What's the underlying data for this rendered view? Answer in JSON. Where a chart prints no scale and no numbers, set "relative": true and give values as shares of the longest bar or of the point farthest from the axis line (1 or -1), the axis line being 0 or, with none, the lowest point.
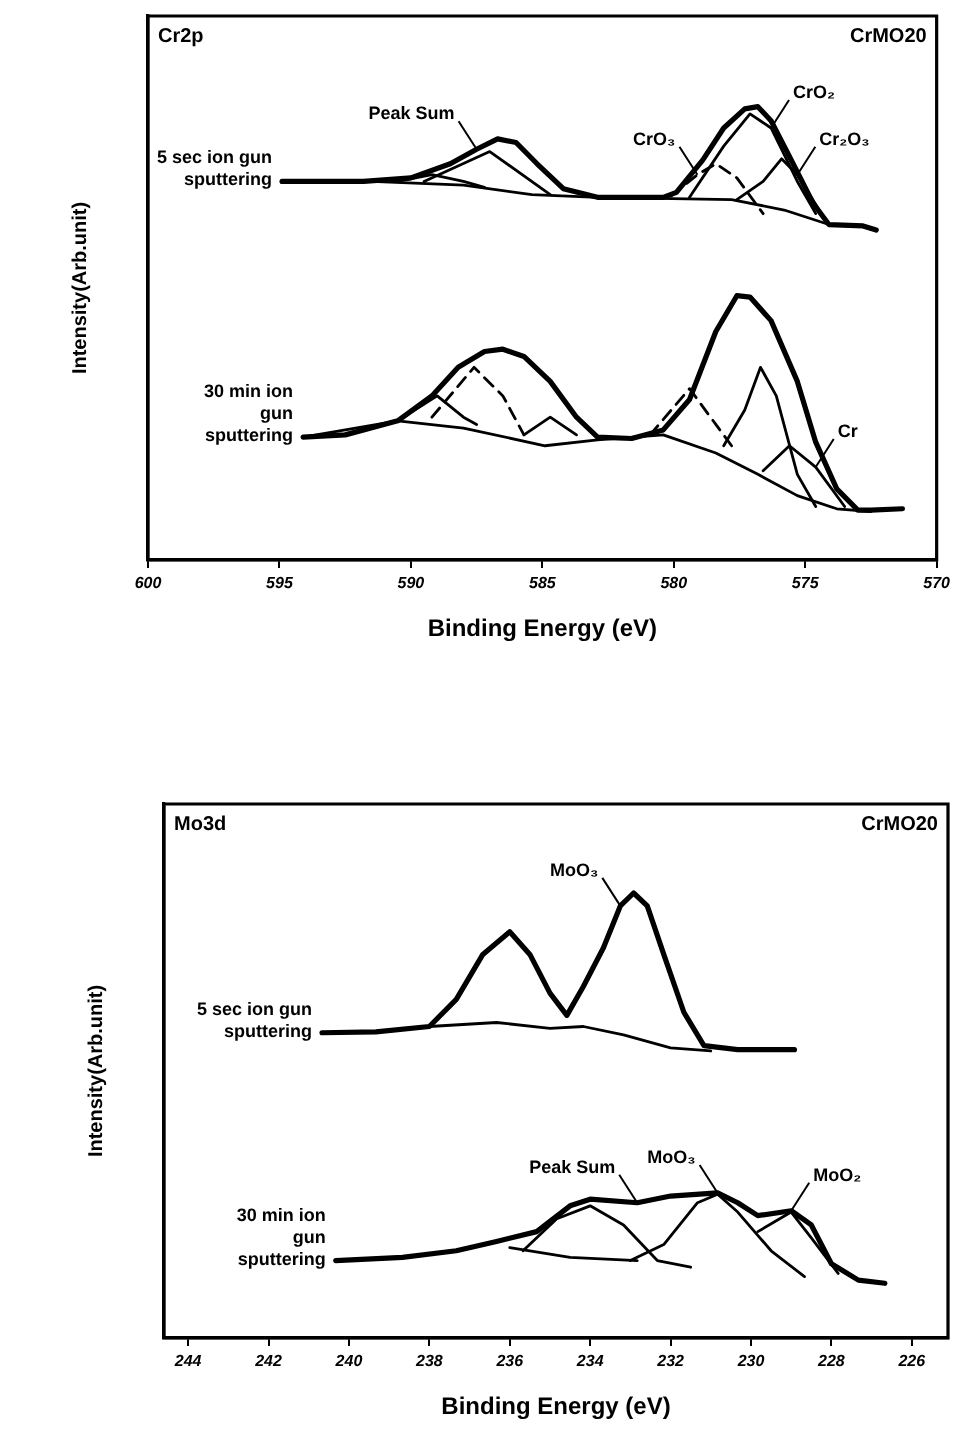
{
  "chart_data": [
    {
      "type": "line",
      "xlabel": "Binding Energy (eV)",
      "ylabel": "Intensity(Arb.unit)",
      "relative": true,
      "legend": false,
      "grid": false,
      "marker": "none",
      "line_style": "solid",
      "xlim": [
        600,
        570
      ],
      "xticks": [
        600,
        595,
        590,
        585,
        580,
        575,
        570
      ],
      "annotations": [
        "Cr2p",
        "CrMO20",
        {
          "text": "Peak Sum",
          "x": 587.5,
          "y": 0.906
        },
        {
          "text": "CrO₃",
          "x": 579.1,
          "y": 0.85
        },
        {
          "text": "CrO₂",
          "x": 576.3,
          "y": 0.953
        },
        {
          "text": "Cr₂O₃",
          "x": 575.3,
          "y": 0.85
        },
        {
          "text": "Cr",
          "x": 574.6,
          "y": 0.205
        }
      ],
      "series": [
        {
          "name": "5 sec ion gun sputtering",
          "color": "#000000",
          "x": [
            594.9,
            591.8,
            590.0,
            588.5,
            587.5,
            586.7,
            586.0,
            585.2,
            584.2,
            582.9,
            580.4,
            579.9,
            578.9,
            578.1,
            577.3,
            576.8,
            576.3,
            575.6,
            574.7,
            574.1,
            572.8,
            572.3
          ],
          "values": [
            0.835,
            0.835,
            0.843,
            0.874,
            0.906,
            0.929,
            0.921,
            0.874,
            0.819,
            0.8,
            0.8,
            0.811,
            0.882,
            0.953,
            0.995,
            1.0,
            0.969,
            0.89,
            0.787,
            0.74,
            0.737,
            0.728
          ]
        },
        {
          "color": "#000000",
          "x": [
            591.5,
            588.0,
            585.4,
            582.9,
            577.8,
            575.8,
            574.1
          ],
          "values": [
            0.835,
            0.827,
            0.806,
            0.8,
            0.795,
            0.772,
            0.74
          ]
        },
        {
          "color": "#000000",
          "x": [
            590.5,
            589.2,
            588.0,
            587.2
          ],
          "values": [
            0.835,
            0.85,
            0.835,
            0.822
          ]
        },
        {
          "color": "#000000",
          "x": [
            589.5,
            587.0,
            584.7
          ],
          "values": [
            0.835,
            0.901,
            0.806
          ]
        },
        {
          "color": "#000000",
          "line_style": "dashed",
          "x": [
            580.1,
            579.1,
            578.4,
            577.6,
            576.6
          ],
          "values": [
            0.803,
            0.85,
            0.874,
            0.843,
            0.764
          ]
        },
        {
          "color": "#000000",
          "x": [
            579.4,
            578.1,
            577.1,
            576.3,
            575.3,
            574.6
          ],
          "values": [
            0.8,
            0.913,
            0.984,
            0.953,
            0.835,
            0.764
          ]
        },
        {
          "color": "#000000",
          "x": [
            577.6,
            576.6,
            575.9,
            575.3,
            574.3
          ],
          "values": [
            0.795,
            0.835,
            0.885,
            0.85,
            0.756
          ]
        },
        {
          "name": "30 min ion gun sputtering",
          "color": "#000000",
          "x": [
            594.1,
            592.5,
            590.5,
            589.2,
            588.2,
            587.2,
            586.5,
            585.7,
            584.7,
            583.7,
            582.9,
            581.6,
            580.4,
            579.4,
            578.4,
            577.6,
            577.1,
            576.3,
            575.3,
            574.6,
            573.8,
            573.0,
            572.5,
            571.3
          ],
          "values": [
            0.271,
            0.276,
            0.307,
            0.362,
            0.425,
            0.46,
            0.465,
            0.449,
            0.394,
            0.315,
            0.271,
            0.268,
            0.287,
            0.354,
            0.504,
            0.583,
            0.58,
            0.528,
            0.394,
            0.26,
            0.157,
            0.11,
            0.11,
            0.113
          ]
        },
        {
          "color": "#000000",
          "x": [
            594.1,
            590.5,
            588.0,
            584.9,
            582.9,
            580.4,
            578.4,
            576.8,
            575.3,
            573.8,
            572.5
          ],
          "values": [
            0.271,
            0.307,
            0.291,
            0.252,
            0.265,
            0.276,
            0.236,
            0.189,
            0.142,
            0.113,
            0.107
          ]
        },
        {
          "color": "#000000",
          "x": [
            590.5,
            589.0,
            588.0,
            587.5
          ],
          "values": [
            0.307,
            0.362,
            0.315,
            0.299
          ]
        },
        {
          "color": "#000000",
          "line_style": "dashed",
          "x": [
            589.2,
            587.6,
            586.5,
            585.7
          ],
          "values": [
            0.315,
            0.425,
            0.362,
            0.276
          ]
        },
        {
          "color": "#000000",
          "x": [
            585.7,
            584.7,
            583.7
          ],
          "values": [
            0.276,
            0.315,
            0.276
          ]
        },
        {
          "color": "#000000",
          "line_style": "dashed",
          "x": [
            580.9,
            579.4,
            578.4,
            577.8
          ],
          "values": [
            0.276,
            0.378,
            0.299,
            0.252
          ]
        },
        {
          "color": "#000000",
          "x": [
            578.1,
            577.3,
            576.7,
            576.1,
            575.3,
            574.6
          ],
          "values": [
            0.252,
            0.331,
            0.425,
            0.362,
            0.189,
            0.118
          ]
        },
        {
          "color": "#000000",
          "x": [
            576.6,
            575.6,
            574.6,
            573.5
          ],
          "values": [
            0.197,
            0.252,
            0.205,
            0.118
          ]
        }
      ]
    },
    {
      "type": "line",
      "xlabel": "Binding Energy (eV)",
      "ylabel": "Intensity(Arb.unit)",
      "relative": true,
      "legend": false,
      "grid": false,
      "marker": "none",
      "line_style": "solid",
      "xlim": [
        244.6,
        225.1
      ],
      "xticks": [
        244,
        242,
        240,
        238,
        236,
        234,
        232,
        230,
        228,
        226
      ],
      "annotations": [
        "Mo3d",
        "CrMO20",
        {
          "text": "MoO₃",
          "x": 233.25,
          "y": 0.971
        },
        {
          "text": "Peak Sum",
          "x": 232.83,
          "y": 0.304
        },
        {
          "text": "MoO₃",
          "x": 230.83,
          "y": 0.326
        },
        {
          "text": "MoO₂",
          "x": 229.0,
          "y": 0.286
        }
      ],
      "series": [
        {
          "name": "5 sec ion gun sputtering",
          "color": "#000000",
          "x": [
            240.67,
            239.33,
            238.0,
            237.33,
            236.67,
            236.0,
            235.5,
            235.0,
            234.58,
            234.17,
            233.67,
            233.25,
            232.92,
            232.58,
            232.17,
            231.67,
            231.17,
            230.33,
            228.92
          ],
          "values": [
            0.686,
            0.688,
            0.7,
            0.761,
            0.862,
            0.913,
            0.862,
            0.775,
            0.725,
            0.79,
            0.877,
            0.971,
            1.0,
            0.971,
            0.862,
            0.732,
            0.657,
            0.648,
            0.648
          ]
        },
        {
          "color": "#000000",
          "x": [
            238.0,
            236.33,
            235.0,
            234.17,
            233.17,
            232.0,
            231.0
          ],
          "values": [
            0.7,
            0.709,
            0.696,
            0.7,
            0.681,
            0.652,
            0.645
          ]
        },
        {
          "name": "30 min ion gun sputtering",
          "color": "#000000",
          "x": [
            240.33,
            238.67,
            237.33,
            236.33,
            235.33,
            234.5,
            234.0,
            232.83,
            232.0,
            230.83,
            230.33,
            229.83,
            229.0,
            228.5,
            228.0,
            227.33,
            226.67
          ],
          "values": [
            0.174,
            0.181,
            0.196,
            0.217,
            0.239,
            0.297,
            0.312,
            0.304,
            0.319,
            0.326,
            0.304,
            0.275,
            0.286,
            0.254,
            0.167,
            0.13,
            0.123
          ]
        },
        {
          "color": "#000000",
          "x": [
            236.0,
            234.5,
            232.83
          ],
          "values": [
            0.203,
            0.181,
            0.174
          ]
        },
        {
          "color": "#000000",
          "x": [
            235.67,
            234.83,
            234.0,
            233.17,
            232.33,
            231.5
          ],
          "values": [
            0.196,
            0.268,
            0.297,
            0.254,
            0.174,
            0.159
          ]
        },
        {
          "color": "#000000",
          "x": [
            233.0,
            232.17,
            231.33,
            230.83,
            230.33,
            229.5,
            228.67
          ],
          "values": [
            0.174,
            0.21,
            0.304,
            0.323,
            0.283,
            0.196,
            0.138
          ]
        },
        {
          "color": "#000000",
          "x": [
            229.83,
            229.0,
            228.5,
            227.83
          ],
          "values": [
            0.239,
            0.283,
            0.225,
            0.145
          ]
        }
      ]
    }
  ]
}
